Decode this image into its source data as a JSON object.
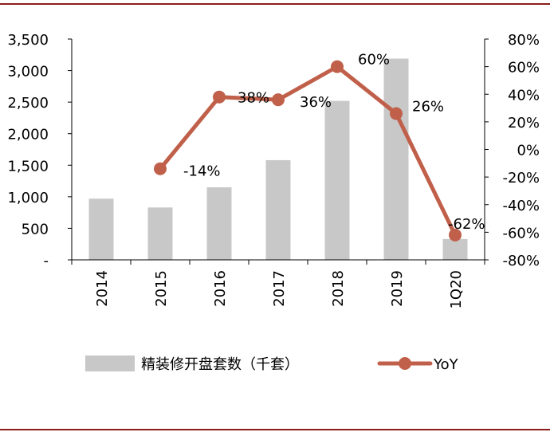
{
  "chart_data": {
    "type": "bar",
    "categories": [
      "2014",
      "2015",
      "2016",
      "2017",
      "2018",
      "2019",
      "1Q20"
    ],
    "series": [
      {
        "name": "精装修开盘套数（千套）",
        "type": "bar",
        "axis": "left",
        "color": "#c8c8c8",
        "values": [
          970,
          830,
          1150,
          1580,
          2520,
          3190,
          330
        ]
      },
      {
        "name": "YoY",
        "type": "line",
        "axis": "right",
        "color": "#c0604a",
        "values": [
          null,
          -14,
          38,
          36,
          60,
          26,
          -62
        ],
        "labels": [
          "",
          "-14%",
          "38%",
          "36%",
          "60%",
          "26%",
          "-62%"
        ]
      }
    ],
    "y_left": {
      "range": [
        0,
        3500
      ],
      "ticks": [
        0,
        500,
        1000,
        1500,
        2000,
        2500,
        3000,
        3500
      ],
      "tick_labels": [
        "-",
        "500",
        "1,000",
        "1,500",
        "2,000",
        "2,500",
        "3,000",
        "3,500"
      ]
    },
    "y_right": {
      "range": [
        -80,
        80
      ],
      "ticks": [
        -80,
        -60,
        -40,
        -20,
        0,
        20,
        40,
        60,
        80
      ],
      "tick_labels": [
        "-80%",
        "-60%",
        "-40%",
        "-20%",
        "0%",
        "20%",
        "40%",
        "60%",
        "80%"
      ]
    },
    "grid": false,
    "legend": "bottom",
    "legend_entries": [
      "精装修开盘套数（千套）",
      "YoY"
    ]
  }
}
